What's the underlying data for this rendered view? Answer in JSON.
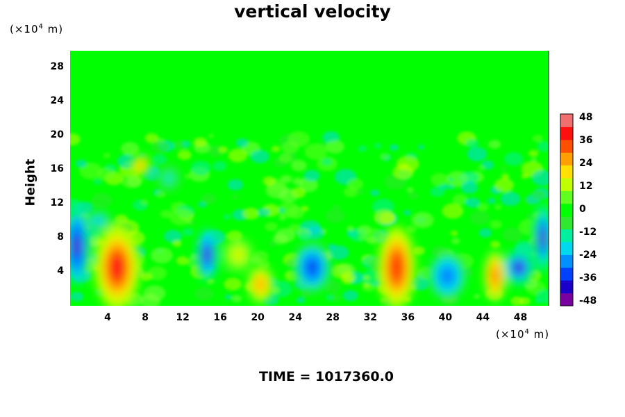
{
  "chart_data": {
    "type": "heatmap",
    "title": "vertical velocity",
    "ylabel": "Height",
    "y_unit": {
      "prefix": "(×10",
      "exp": "4",
      "suffix": " m)"
    },
    "x_unit": {
      "prefix": "(×10",
      "exp": "4",
      "suffix": " m)"
    },
    "xlim": [
      0,
      51
    ],
    "ylim": [
      0,
      30
    ],
    "xticks": [
      "4",
      "8",
      "12",
      "16",
      "20",
      "24",
      "28",
      "32",
      "36",
      "40",
      "44",
      "48"
    ],
    "yticks": [
      "4",
      "8",
      "12",
      "16",
      "20",
      "24",
      "28"
    ],
    "colorbar": {
      "range": [
        -50,
        50
      ],
      "ticks": [
        "48",
        "36",
        "24",
        "12",
        "0",
        "-12",
        "-24",
        "-36",
        "-48"
      ],
      "colors": [
        "#7a00a0",
        "#1a00c8",
        "#0040ff",
        "#0090ff",
        "#00d8f0",
        "#00f0a0",
        "#30e830",
        "#00ff00",
        "#60ff20",
        "#c0ff00",
        "#ffe000",
        "#ffa000",
        "#ff5000",
        "#ff1010",
        "#f07070"
      ]
    },
    "blobs": [
      {
        "x": 5.0,
        "y": 4.5,
        "rx": 2.4,
        "ry": 5.0,
        "v": 42
      },
      {
        "x": 34.8,
        "y": 4.5,
        "rx": 2.0,
        "ry": 4.8,
        "v": 40
      },
      {
        "x": 45.3,
        "y": 3.5,
        "rx": 1.2,
        "ry": 3.0,
        "v": 34
      },
      {
        "x": 20.3,
        "y": 2.5,
        "rx": 1.4,
        "ry": 2.2,
        "v": 28
      },
      {
        "x": 17.9,
        "y": 6.0,
        "rx": 1.6,
        "ry": 2.0,
        "v": 18
      },
      {
        "x": 0.7,
        "y": 7.0,
        "rx": 1.3,
        "ry": 4.5,
        "v": -48
      },
      {
        "x": 14.6,
        "y": 6.0,
        "rx": 1.1,
        "ry": 3.0,
        "v": -46
      },
      {
        "x": 25.8,
        "y": 4.5,
        "rx": 2.0,
        "ry": 3.0,
        "v": -38
      },
      {
        "x": 40.2,
        "y": 3.5,
        "rx": 2.0,
        "ry": 2.8,
        "v": -34
      },
      {
        "x": 47.8,
        "y": 4.5,
        "rx": 1.6,
        "ry": 2.0,
        "v": -44
      },
      {
        "x": 50.4,
        "y": 8.0,
        "rx": 1.0,
        "ry": 4.0,
        "v": -44
      },
      {
        "x": 7.5,
        "y": 16.5,
        "rx": 1.0,
        "ry": 1.2,
        "v": 28
      },
      {
        "x": 10.5,
        "y": 15.0,
        "rx": 1.2,
        "ry": 1.5,
        "v": -18
      },
      {
        "x": 3.0,
        "y": 10.0,
        "rx": 1.4,
        "ry": 1.2,
        "v": -24
      }
    ],
    "time_label": "TIME = 1017360.0"
  }
}
